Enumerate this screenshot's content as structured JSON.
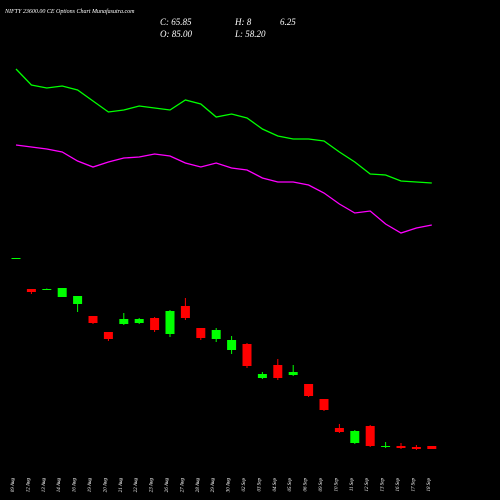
{
  "chart_data": {
    "type": "candlestick",
    "title": "NIFTY 23600.00 CE Options  Chart Munafasutra.com",
    "info": [
      "C: 65.85",
      "H: 8",
      "6.25",
      "O: 85.00",
      "L: 58.20"
    ],
    "categories": [
      "09 Aug",
      "12 Aug",
      "13 Aug",
      "14 Aug",
      "16 Aug",
      "19 Aug",
      "20 Aug",
      "21 Aug",
      "22 Aug",
      "23 Aug",
      "26 Aug",
      "27 Aug",
      "28 Aug",
      "29 Aug",
      "30 Aug",
      "02 Sep",
      "03 Sep",
      "04 Sep",
      "05 Sep",
      "06 Sep",
      "09 Sep",
      "10 Sep",
      "11 Sep",
      "12 Sep",
      "13 Sep",
      "16 Sep",
      "17 Sep",
      "18 Sep"
    ],
    "open": [
      241,
      211,
      210.5,
      203,
      196,
      184,
      168,
      176,
      177,
      182,
      166,
      194,
      172,
      161,
      150,
      156,
      122,
      135,
      125,
      116,
      101,
      72,
      57,
      74,
      53,
      54,
      53,
      54
    ],
    "high": [
      242,
      211,
      211.5,
      212,
      204,
      184,
      168,
      187,
      182,
      183,
      190,
      202,
      172,
      172,
      164,
      157,
      128,
      141,
      135,
      116,
      101,
      76,
      70,
      75,
      58,
      57,
      55,
      54
    ],
    "low": [
      241,
      206,
      210,
      203,
      188,
      176,
      159,
      175,
      176,
      168,
      163,
      180,
      160,
      158,
      146,
      132,
      121,
      120,
      124,
      103,
      89,
      67,
      56,
      53,
      52,
      51,
      50,
      51
    ],
    "close": [
      242,
      208,
      211,
      212,
      204,
      177,
      161,
      181,
      181,
      170,
      189,
      182,
      162,
      170,
      160,
      134,
      126,
      122,
      128,
      104,
      90,
      68,
      69,
      54,
      54,
      52,
      51,
      51
    ],
    "up_color": "#00ff00",
    "down_color": "#ff0000",
    "series": [
      {
        "color": "#00ff00",
        "values": [
          431,
          415,
          412,
          414,
          410,
          399,
          388,
          390,
          394,
          392,
          390,
          400,
          396,
          383,
          386,
          382,
          371,
          364,
          361,
          361,
          359,
          348,
          338,
          326,
          325,
          319,
          318,
          317
        ]
      },
      {
        "color": "#ff00ff",
        "values": [
          355,
          353,
          351,
          348,
          339,
          333,
          338,
          342,
          343,
          346,
          344,
          337,
          333,
          337,
          332,
          330,
          322,
          318,
          318,
          315,
          307,
          296,
          287,
          289,
          276,
          267,
          272,
          275
        ]
      }
    ],
    "ylim": [
      0,
      500
    ]
  }
}
